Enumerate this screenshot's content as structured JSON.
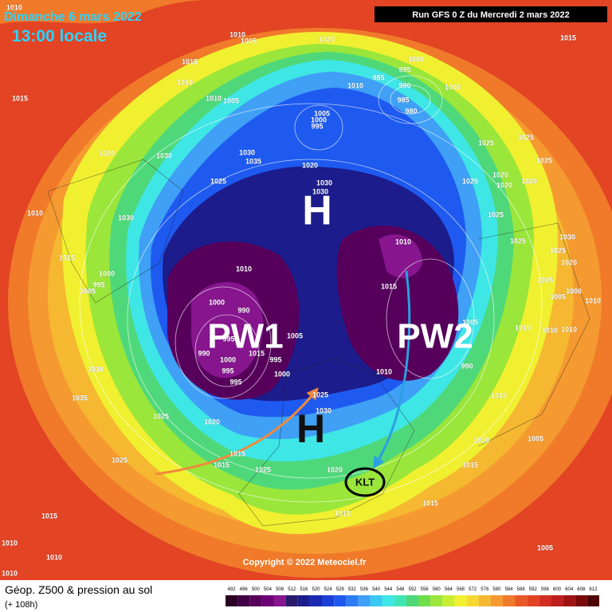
{
  "header": {
    "date": "Dimanche 6 mars 2022",
    "time": "13:00 locale",
    "run": "Run GFS 0 Z du Mercredi 2 mars 2022"
  },
  "annotations": {
    "high_north": "H",
    "high_europe": "H",
    "pw1": "PW1",
    "pw2": "PW2",
    "target": "KLT"
  },
  "isobar_labels": [
    "1010",
    "1010",
    "1005",
    "1020",
    "1000",
    "985",
    "995",
    "990",
    "985",
    "980",
    "1005",
    "1010",
    "1015",
    "1010",
    "1010",
    "1005",
    "1015",
    "1005",
    "1000",
    "995",
    "1020",
    "1030",
    "1030",
    "1035",
    "1020",
    "1030",
    "1030",
    "1025",
    "1010",
    "1030",
    "1015",
    "1000",
    "995",
    "1005",
    "1010",
    "1000",
    "990",
    "1005",
    "995",
    "990",
    "1015",
    "1000",
    "995",
    "995",
    "995",
    "1000",
    "1030",
    "1035",
    "1025",
    "1020",
    "1015",
    "1015",
    "1025",
    "1025",
    "1030",
    "1025",
    "1015",
    "1010",
    "1010",
    "1010",
    "1015",
    "1010",
    "1005",
    "990",
    "1010",
    "1025",
    "1025",
    "1025",
    "1020",
    "1020",
    "1020",
    "1025",
    "1025",
    "1025",
    "1030",
    "1025",
    "1020",
    "1005",
    "1000",
    "1010",
    "1005",
    "1010",
    "1010",
    "1010",
    "1005",
    "1010",
    "1015",
    "1020",
    "1015",
    "1015",
    "1005",
    "1015",
    "1010"
  ],
  "copyright": "Copyright © 2022 Meteociel.fr",
  "footer": {
    "title": "Géop. Z500 & pression au sol",
    "lead": "(+ 108h)"
  },
  "scale": {
    "values": [
      492,
      496,
      500,
      504,
      508,
      512,
      516,
      520,
      524,
      528,
      532,
      536,
      540,
      544,
      548,
      552,
      556,
      560,
      564,
      568,
      572,
      576,
      580,
      584,
      588,
      592,
      596,
      600,
      604,
      608,
      612
    ],
    "colors": [
      "#2a0025",
      "#3f0045",
      "#56005c",
      "#6e0075",
      "#86158e",
      "#2a1a6b",
      "#1c1c8c",
      "#1a2ab0",
      "#1a3fd6",
      "#1e5af0",
      "#2e7cf5",
      "#3fa0f5",
      "#38c8f0",
      "#3ee6e6",
      "#3fe6b4",
      "#4fd87a",
      "#6ede4a",
      "#9ae63a",
      "#c8ee32",
      "#f0f030",
      "#f5d830",
      "#f5b830",
      "#f59a30",
      "#f07a2a",
      "#ea5a26",
      "#e24424",
      "#d42e22",
      "#bf1e1e",
      "#a01212",
      "#7a0a0a",
      "#500505"
    ]
  }
}
